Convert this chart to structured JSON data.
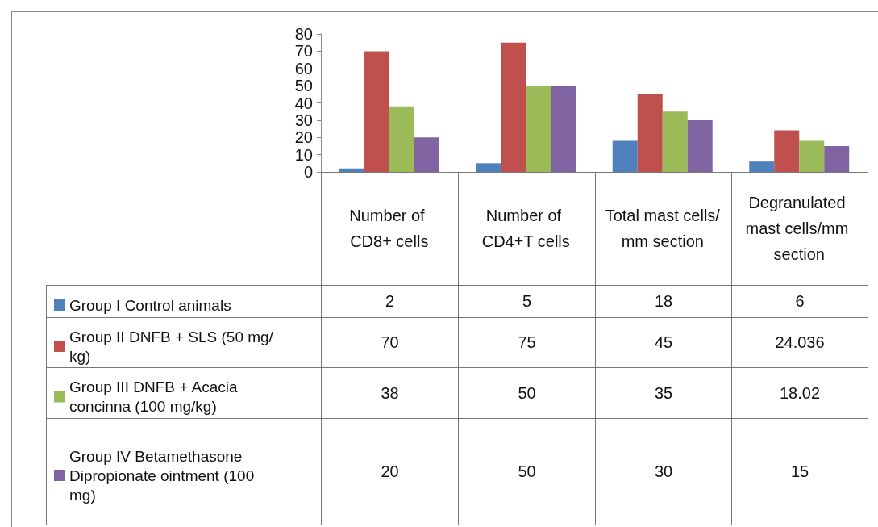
{
  "chart_data": {
    "type": "bar",
    "categories": [
      "Number of CD8+ cells",
      "Number of CD4+T cells",
      "Total mast cells/mm section",
      "Degranulated mast cells/mm section"
    ],
    "series": [
      {
        "name": "Group I Control animals",
        "color": "#4f81bd",
        "values": [
          2,
          5,
          18,
          6
        ]
      },
      {
        "name": "Group II DNFB + SLS (50 mg/kg)",
        "color": "#c0504d",
        "values": [
          70,
          75,
          45,
          24.036
        ]
      },
      {
        "name": "Group III DNFB + Acacia concinna (100 mg/kg)",
        "color": "#9bbb59",
        "values": [
          38,
          50,
          35,
          18.02
        ]
      },
      {
        "name": "Group IV Betamethasone Dipropionate ointment (100 mg)",
        "color": "#8064a2",
        "values": [
          20,
          50,
          30,
          15
        ]
      }
    ],
    "ylim": [
      0,
      80
    ],
    "yticks": [
      0,
      10,
      20,
      30,
      40,
      50,
      60,
      70,
      80
    ],
    "grid": false,
    "legend": "bottom left",
    "data_labels": true
  }
}
